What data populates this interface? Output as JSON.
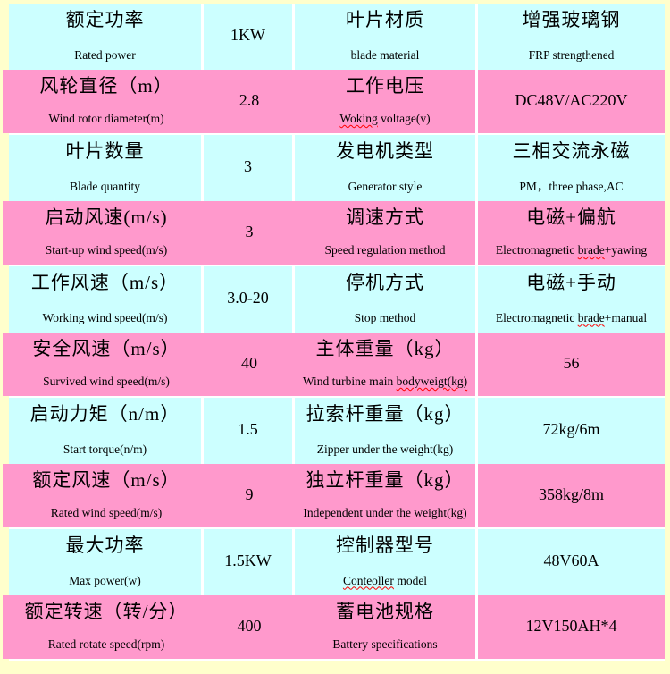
{
  "colors": {
    "page_background": "#FFFFCC",
    "row_cyan": "#CCFFFF",
    "row_pink": "#FF99CC",
    "gridline": "#FFFFFF",
    "spellcheck_squiggle": "#FF0000",
    "text": "#000000"
  },
  "table_description": "Wind turbine specification table, 10 rows, alternating cyan/pink, bilingual Chinese/English labels",
  "rows": [
    {
      "left_label": {
        "cn": "额定功率",
        "en_pre": "Rated power",
        "en_sq": "",
        "en_post": "",
        "main": ""
      },
      "left_value": {
        "cn": "",
        "en_pre": "",
        "en_sq": "",
        "en_post": "",
        "main": "1KW"
      },
      "right_label": {
        "cn": "叶片材质",
        "en_pre": "blade material",
        "en_sq": "",
        "en_post": "",
        "main": ""
      },
      "right_value": {
        "cn": "增强玻璃钢",
        "en_pre": "FRP strengthened",
        "en_sq": "",
        "en_post": "",
        "main": ""
      }
    },
    {
      "left_label": {
        "cn": "风轮直径（m）",
        "en_pre": "Wind rotor diameter(m)",
        "en_sq": "",
        "en_post": "",
        "main": ""
      },
      "left_value": {
        "cn": "",
        "en_pre": "",
        "en_sq": "",
        "en_post": "",
        "main": "2.8"
      },
      "right_label": {
        "cn": "工作电压",
        "en_pre": "",
        "en_sq": "Woking",
        "en_post": " voltage(v)",
        "main": ""
      },
      "right_value": {
        "cn": "",
        "en_pre": "",
        "en_sq": "",
        "en_post": "",
        "main": "DC48V/AC220V"
      }
    },
    {
      "left_label": {
        "cn": "叶片数量",
        "en_pre": "Blade quantity",
        "en_sq": "",
        "en_post": "",
        "main": ""
      },
      "left_value": {
        "cn": "",
        "en_pre": "",
        "en_sq": "",
        "en_post": "",
        "main": "3"
      },
      "right_label": {
        "cn": "发电机类型",
        "en_pre": "Generator style",
        "en_sq": "",
        "en_post": "",
        "main": ""
      },
      "right_value": {
        "cn": "三相交流永磁",
        "en_pre": "PM，three phase,AC",
        "en_sq": "",
        "en_post": "",
        "main": ""
      }
    },
    {
      "left_label": {
        "cn": "启动风速(m/s)",
        "en_pre": "Start-up wind speed(m/s)",
        "en_sq": "",
        "en_post": "",
        "main": ""
      },
      "left_value": {
        "cn": "",
        "en_pre": "",
        "en_sq": "",
        "en_post": "",
        "main": "3"
      },
      "right_label": {
        "cn": "调速方式",
        "en_pre": "Speed regulation method",
        "en_sq": "",
        "en_post": "",
        "main": ""
      },
      "right_value": {
        "cn": "电磁+偏航",
        "en_pre": "Electromagnetic ",
        "en_sq": "brade",
        "en_post": "+yawing",
        "main": ""
      }
    },
    {
      "left_label": {
        "cn": "工作风速（m/s）",
        "en_pre": "Working wind speed(m/s)",
        "en_sq": "",
        "en_post": "",
        "main": ""
      },
      "left_value": {
        "cn": "",
        "en_pre": "",
        "en_sq": "",
        "en_post": "",
        "main": "3.0-20"
      },
      "right_label": {
        "cn": "停机方式",
        "en_pre": "Stop method",
        "en_sq": "",
        "en_post": "",
        "main": ""
      },
      "right_value": {
        "cn": "电磁+手动",
        "en_pre": "Electromagnetic ",
        "en_sq": "brade",
        "en_post": "+manual",
        "main": ""
      }
    },
    {
      "left_label": {
        "cn": "安全风速（m/s）",
        "en_pre": "Survived wind speed(m/s)",
        "en_sq": "",
        "en_post": "",
        "main": ""
      },
      "left_value": {
        "cn": "",
        "en_pre": "",
        "en_sq": "",
        "en_post": "",
        "main": "40"
      },
      "right_label": {
        "cn": "主体重量（kg）",
        "en_pre": "Wind turbine main ",
        "en_sq": "bodyweigt(kg)",
        "en_post": "",
        "main": ""
      },
      "right_value": {
        "cn": "",
        "en_pre": "",
        "en_sq": "",
        "en_post": "",
        "main": "56"
      }
    },
    {
      "left_label": {
        "cn": "启动力矩（n/m）",
        "en_pre": "Start torque(n/m)",
        "en_sq": "",
        "en_post": "",
        "main": ""
      },
      "left_value": {
        "cn": "",
        "en_pre": "",
        "en_sq": "",
        "en_post": "",
        "main": "1.5"
      },
      "right_label": {
        "cn": "拉索杆重量（kg）",
        "en_pre": "Zipper under the weight(kg)",
        "en_sq": "",
        "en_post": "",
        "main": ""
      },
      "right_value": {
        "cn": "",
        "en_pre": "",
        "en_sq": "",
        "en_post": "",
        "main": "72kg/6m"
      }
    },
    {
      "left_label": {
        "cn": "额定风速（m/s）",
        "en_pre": "Rated wind speed(m/s)",
        "en_sq": "",
        "en_post": "",
        "main": ""
      },
      "left_value": {
        "cn": "",
        "en_pre": "",
        "en_sq": "",
        "en_post": "",
        "main": "9"
      },
      "right_label": {
        "cn": "独立杆重量（kg）",
        "en_pre": "Independent under the weight(kg)",
        "en_sq": "",
        "en_post": "",
        "main": ""
      },
      "right_value": {
        "cn": "",
        "en_pre": "",
        "en_sq": "",
        "en_post": "",
        "main": "358kg/8m"
      }
    },
    {
      "left_label": {
        "cn": "最大功率",
        "en_pre": "Max power(w)",
        "en_sq": "",
        "en_post": "",
        "main": ""
      },
      "left_value": {
        "cn": "",
        "en_pre": "",
        "en_sq": "",
        "en_post": "",
        "main": "1.5KW"
      },
      "right_label": {
        "cn": "控制器型号",
        "en_pre": "",
        "en_sq": "Conteoller",
        "en_post": " model",
        "main": ""
      },
      "right_value": {
        "cn": "",
        "en_pre": "",
        "en_sq": "",
        "en_post": "",
        "main": "48V60A"
      }
    },
    {
      "left_label": {
        "cn": "额定转速（转/分）",
        "en_pre": "Rated rotate speed(rpm)",
        "en_sq": "",
        "en_post": "",
        "main": ""
      },
      "left_value": {
        "cn": "",
        "en_pre": "",
        "en_sq": "",
        "en_post": "",
        "main": "400"
      },
      "right_label": {
        "cn": "蓄电池规格",
        "en_pre": "Battery specifications",
        "en_sq": "",
        "en_post": "",
        "main": ""
      },
      "right_value": {
        "cn": "",
        "en_pre": "",
        "en_sq": "",
        "en_post": "",
        "main": "12V150AH*4"
      }
    }
  ]
}
